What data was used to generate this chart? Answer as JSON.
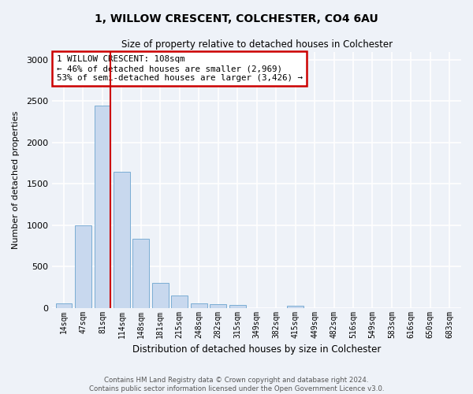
{
  "title_line1": "1, WILLOW CRESCENT, COLCHESTER, CO4 6AU",
  "title_line2": "Size of property relative to detached houses in Colchester",
  "xlabel": "Distribution of detached houses by size in Colchester",
  "ylabel": "Number of detached properties",
  "bar_labels": [
    "14sqm",
    "47sqm",
    "81sqm",
    "114sqm",
    "148sqm",
    "181sqm",
    "215sqm",
    "248sqm",
    "282sqm",
    "315sqm",
    "349sqm",
    "382sqm",
    "415sqm",
    "449sqm",
    "482sqm",
    "516sqm",
    "549sqm",
    "583sqm",
    "616sqm",
    "650sqm",
    "683sqm"
  ],
  "bar_values": [
    55,
    1000,
    2450,
    1650,
    840,
    300,
    150,
    55,
    40,
    30,
    0,
    0,
    25,
    0,
    0,
    0,
    0,
    0,
    0,
    0,
    0
  ],
  "bar_color": "#c8d8ee",
  "bar_edge_color": "#7badd4",
  "property_bar_index": 2,
  "vline_color": "#cc0000",
  "annotation_text": "1 WILLOW CRESCENT: 108sqm\n← 46% of detached houses are smaller (2,969)\n53% of semi-detached houses are larger (3,426) →",
  "annotation_box_color": "#ffffff",
  "annotation_box_edge": "#cc0000",
  "ylim": [
    0,
    3100
  ],
  "yticks": [
    0,
    500,
    1000,
    1500,
    2000,
    2500,
    3000
  ],
  "footer_line1": "Contains HM Land Registry data © Crown copyright and database right 2024.",
  "footer_line2": "Contains public sector information licensed under the Open Government Licence v3.0.",
  "background_color": "#eef2f8",
  "plot_bg_color": "#eef2f8",
  "grid_color": "#ffffff"
}
